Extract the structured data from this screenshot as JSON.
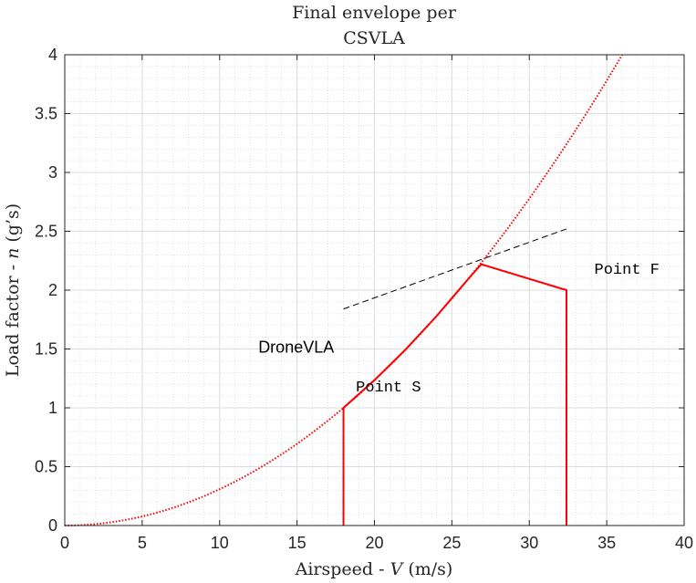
{
  "chart_data": {
    "type": "line",
    "title_line1": "Final envelope per",
    "title_line2": "CSVLA",
    "xlabel_prefix": "Airspeed - ",
    "xlabel_var": "V",
    "xlabel_suffix": " (m/s)",
    "ylabel_prefix": "Load factor - ",
    "ylabel_var": "n",
    "ylabel_suffix": " (g’s)",
    "xlim": [
      0,
      40
    ],
    "ylim": [
      0,
      4
    ],
    "x_ticks": [
      0,
      5,
      10,
      15,
      20,
      25,
      30,
      35,
      40
    ],
    "y_ticks": [
      0,
      0.5,
      1,
      1.5,
      2,
      2.5,
      3,
      3.5,
      4
    ],
    "x_tick_labels": [
      "0",
      "5",
      "10",
      "15",
      "20",
      "25",
      "30",
      "35",
      "40"
    ],
    "y_tick_labels": [
      "0",
      "0.5",
      "1",
      "1.5",
      "2",
      "2.5",
      "3",
      "3.5",
      "4"
    ],
    "grid": "major and minor",
    "series": [
      {
        "role": "stall-curve",
        "style": "dotted",
        "color": "#ff0000",
        "formula_coefficient": 0.003086,
        "x_range": [
          0,
          36
        ]
      },
      {
        "role": "envelope",
        "style": "solid",
        "color": "#ff0000",
        "points": [
          [
            18,
            0
          ],
          [
            18,
            1
          ],
          [
            20,
            1.235
          ],
          [
            22,
            1.494
          ],
          [
            24,
            1.778
          ],
          [
            26,
            2.086
          ],
          [
            26.9,
            2.22
          ],
          [
            32.4,
            2.0
          ],
          [
            32.4,
            0
          ]
        ]
      },
      {
        "role": "gust-line",
        "style": "dashed",
        "color": "#000000",
        "points": [
          [
            18,
            1.84
          ],
          [
            32.4,
            2.52
          ]
        ]
      }
    ],
    "annotations": [
      {
        "text": "DroneVLA",
        "x": 12.5,
        "y": 1.47,
        "font": "sans"
      },
      {
        "text": "Point S",
        "x": 18.8,
        "y": 1.14,
        "font": "mono"
      },
      {
        "text": "Point F",
        "x": 34.2,
        "y": 2.14,
        "font": "mono"
      }
    ]
  }
}
